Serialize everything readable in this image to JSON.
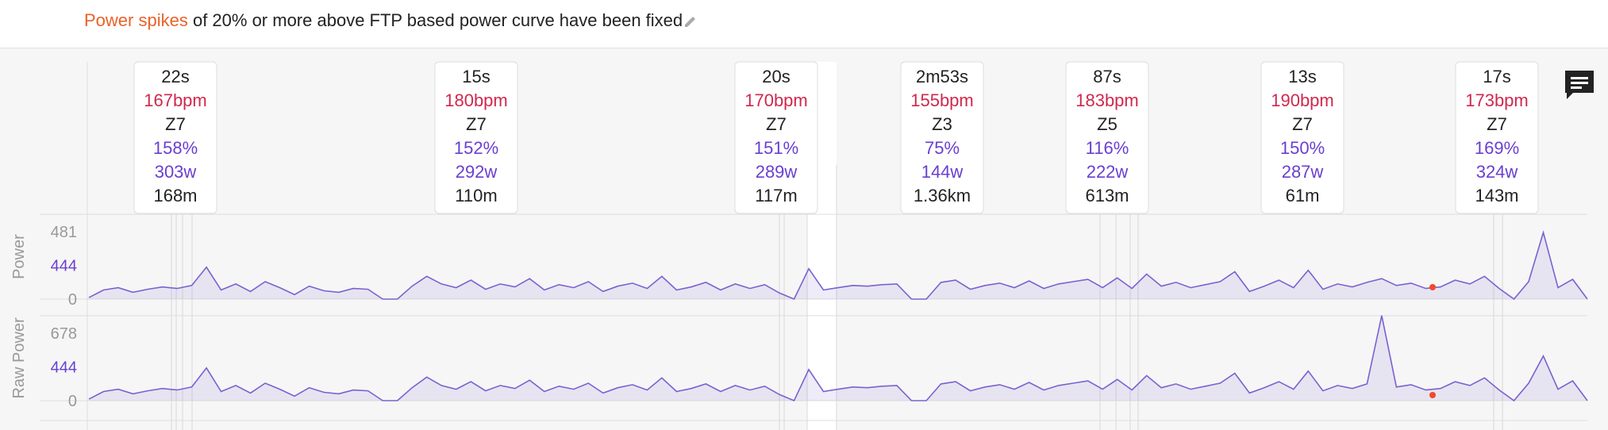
{
  "header": {
    "highlight": "Power spikes",
    "text": "of 20% or more above FTP based power curve have been fixed"
  },
  "intervals": [
    {
      "duration": "22s",
      "hr": "167bpm",
      "zone": "Z7",
      "percent": "158%",
      "watts": "303w",
      "distance": "168m"
    },
    {
      "duration": "15s",
      "hr": "180bpm",
      "zone": "Z7",
      "percent": "152%",
      "watts": "292w",
      "distance": "110m"
    },
    {
      "duration": "20s",
      "hr": "170bpm",
      "zone": "Z7",
      "percent": "151%",
      "watts": "289w",
      "distance": "117m"
    },
    {
      "duration": "2m53s",
      "hr": "155bpm",
      "zone": "Z3",
      "percent": "75%",
      "watts": "144w",
      "distance": "1.36km"
    },
    {
      "duration": "87s",
      "hr": "183bpm",
      "zone": "Z5",
      "percent": "116%",
      "watts": "222w",
      "distance": "613m"
    },
    {
      "duration": "13s",
      "hr": "190bpm",
      "zone": "Z7",
      "percent": "150%",
      "watts": "287w",
      "distance": "61m"
    },
    {
      "duration": "17s",
      "hr": "173bpm",
      "zone": "Z7",
      "percent": "169%",
      "watts": "324w",
      "distance": "143m"
    }
  ],
  "chart_data": [
    {
      "type": "line",
      "ylabel": "Power",
      "ylim": [
        0,
        500
      ],
      "yticks": [
        0,
        444,
        481
      ],
      "series": [
        {
          "color": "#7b61d1",
          "values": [
            20,
            120,
            150,
            90,
            130,
            160,
            140,
            180,
            420,
            120,
            200,
            100,
            230,
            150,
            60,
            170,
            110,
            90,
            140,
            130,
            0,
            0,
            170,
            300,
            200,
            150,
            250,
            130,
            200,
            160,
            270,
            120,
            190,
            150,
            230,
            100,
            170,
            210,
            140,
            300,
            120,
            160,
            220,
            120,
            200,
            140,
            190,
            80,
            0,
            400,
            120,
            150,
            180,
            170,
            190,
            200,
            0,
            0,
            220,
            250,
            130,
            180,
            210,
            150,
            240,
            140,
            200,
            230,
            260,
            150,
            280,
            140,
            330,
            170,
            220,
            150,
            190,
            230,
            360,
            100,
            170,
            250,
            150,
            380,
            130,
            200,
            160,
            220,
            270,
            180,
            210,
            140,
            160,
            250,
            200,
            300,
            140,
            0,
            230,
            480,
            150,
            260,
            0
          ]
        }
      ]
    },
    {
      "type": "line",
      "ylabel": "Raw Power",
      "ylim": [
        0,
        800
      ],
      "yticks": [
        0,
        444,
        678
      ],
      "series": [
        {
          "color": "#7b61d1",
          "values": [
            20,
            120,
            150,
            90,
            130,
            160,
            140,
            180,
            430,
            120,
            200,
            100,
            230,
            150,
            60,
            170,
            110,
            90,
            140,
            130,
            0,
            0,
            170,
            310,
            200,
            150,
            250,
            130,
            200,
            160,
            270,
            120,
            190,
            150,
            230,
            100,
            170,
            210,
            140,
            300,
            120,
            160,
            220,
            120,
            200,
            140,
            190,
            80,
            0,
            410,
            120,
            150,
            180,
            170,
            190,
            200,
            0,
            0,
            220,
            250,
            130,
            180,
            210,
            150,
            240,
            140,
            200,
            230,
            260,
            150,
            280,
            140,
            330,
            170,
            220,
            150,
            190,
            230,
            360,
            100,
            170,
            250,
            150,
            390,
            130,
            200,
            160,
            220,
            800,
            180,
            210,
            140,
            160,
            250,
            200,
            300,
            140,
            0,
            230,
            520,
            150,
            260,
            0
          ]
        }
      ]
    }
  ]
}
